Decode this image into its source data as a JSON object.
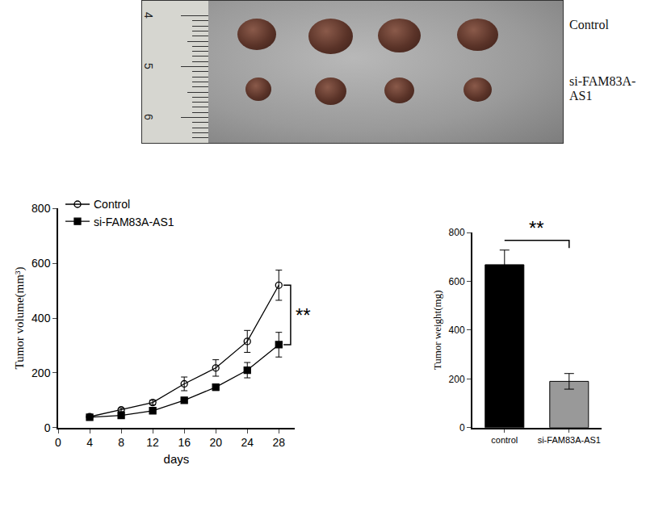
{
  "image": {
    "labels": [
      "Control",
      "si-FAM83A-AS1"
    ],
    "ruler": [
      4,
      5,
      6
    ]
  },
  "chart_data": [
    {
      "type": "line",
      "x": [
        4,
        8,
        12,
        16,
        20,
        24,
        28
      ],
      "series": [
        {
          "name": "Control",
          "color": "#000000",
          "marker": "circle-open",
          "values": [
            40,
            65,
            92,
            160,
            218,
            315,
            520
          ],
          "errors": [
            5,
            6,
            8,
            25,
            30,
            40,
            55
          ]
        },
        {
          "name": "si-FAM83A-AS1",
          "color": "#000000",
          "marker": "square",
          "values": [
            38,
            45,
            62,
            100,
            148,
            210,
            303
          ],
          "errors": [
            4,
            5,
            7,
            10,
            12,
            28,
            45
          ]
        }
      ],
      "x_label": "days",
      "y_label": "Tumor volume(mm³)",
      "xlim": [
        0,
        30
      ],
      "xticks": [
        0,
        4,
        8,
        12,
        16,
        20,
        24,
        28
      ],
      "ylim": [
        0,
        800
      ],
      "yticks": [
        0,
        200,
        400,
        600,
        800
      ],
      "annotations": [
        "**"
      ],
      "legend": "upper left",
      "grid": false
    },
    {
      "type": "bar",
      "categories": [
        "control",
        "si-FAM83A-AS1"
      ],
      "values": [
        668,
        190
      ],
      "errors": [
        60,
        32
      ],
      "colors": [
        "#000000",
        "#999999"
      ],
      "y_label": "Tumor weight(mg)",
      "ylim": [
        0,
        800
      ],
      "yticks": [
        0,
        200,
        400,
        600,
        800
      ],
      "annotations": [
        "**"
      ],
      "grid": false
    }
  ]
}
